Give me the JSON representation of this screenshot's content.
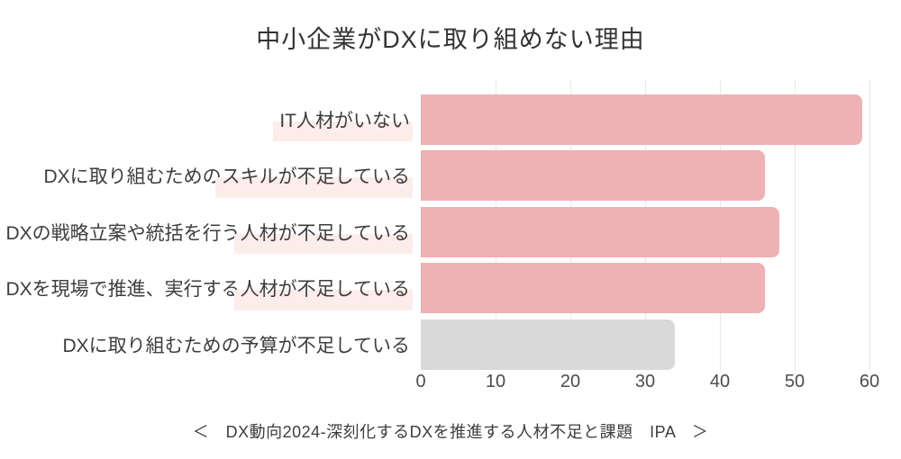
{
  "source_caption": "＜　DX動向2024-深刻化するDXを推進する人材不足と課題　IPA　＞",
  "colors": {
    "bar_pink": "#eeb1b5",
    "bar_gray": "#d9d9d9",
    "label_highlight": "#fcedea",
    "gridline": "#e7e7e7",
    "title_text": "#333333",
    "label_text": "#3d3d3d",
    "tick_text": "#4c4c4c"
  },
  "chart_data": {
    "type": "bar",
    "orientation": "horizontal",
    "title": "中小企業がDXに取り組めない理由",
    "categories": [
      "IT人材がいない",
      "DXに取り組むためのスキルが不足している",
      "DXの戦略立案や統括を行う人材が不足している",
      "DXを現場で推進、実行する人材が不足している",
      "DXに取り組むための予算が不足している"
    ],
    "values": [
      59,
      46,
      48,
      46,
      34
    ],
    "rows": [
      {
        "label_pre": "",
        "label_emphasis": "IT人材がいない",
        "value": 59,
        "bar_color": "#eeb1b5"
      },
      {
        "label_pre": "DXに取り組むための",
        "label_emphasis": "スキルが不足している",
        "value": 46,
        "bar_color": "#eeb1b5"
      },
      {
        "label_pre": "DXの戦略立案や統括を行う",
        "label_emphasis": "人材が不足している",
        "value": 48,
        "bar_color": "#eeb1b5"
      },
      {
        "label_pre": "DXを現場で推進、実行する",
        "label_emphasis": "人材が不足している",
        "value": 46,
        "bar_color": "#eeb1b5"
      },
      {
        "label_pre": "DXに取り組むための予算が不足している",
        "label_emphasis": "",
        "value": 34,
        "bar_color": "#d9d9d9"
      }
    ],
    "xlim": [
      0,
      60
    ],
    "xticks": [
      0,
      10,
      20,
      30,
      40,
      50,
      60
    ],
    "grid": "vertical-only",
    "legend": "none",
    "axis_line": "none",
    "source": "DX動向2024-深刻化するDXを推進する人材不足と課題 IPA"
  }
}
